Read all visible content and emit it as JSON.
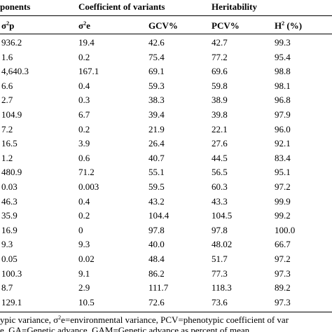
{
  "table": {
    "group_headers": [
      "ponents",
      "Coefficient of variants",
      "Heritability"
    ],
    "column_headers": [
      {
        "pre": "σ",
        "sup": "2",
        "post": "p"
      },
      {
        "pre": "σ",
        "sup": "2",
        "post": "e"
      },
      {
        "pre": "GCV%",
        "sup": "",
        "post": ""
      },
      {
        "pre": "PCV%",
        "sup": "",
        "post": ""
      },
      {
        "pre": "H",
        "sup": "2",
        "post": " (%)"
      }
    ],
    "rows": [
      [
        "936.2",
        "19.4",
        "42.6",
        "42.7",
        "99.3"
      ],
      [
        "1.6",
        "0.2",
        "75.4",
        "77.2",
        "95.4"
      ],
      [
        "4,640.3",
        "167.1",
        "69.1",
        "69.6",
        "98.8"
      ],
      [
        "6.6",
        "0.4",
        "59.3",
        "59.8",
        "98.1"
      ],
      [
        "2.7",
        "0.3",
        "38.3",
        "38.9",
        "96.8"
      ],
      [
        "104.9",
        "6.7",
        "39.4",
        "39.8",
        "97.9"
      ],
      [
        "7.2",
        "0.2",
        "21.9",
        "22.1",
        "96.0"
      ],
      [
        "16.5",
        "3.9",
        "26.4",
        "27.6",
        "92.1"
      ],
      [
        "1.2",
        "0.6",
        "40.7",
        "44.5",
        "83.4"
      ],
      [
        "480.9",
        "71.2",
        "55.1",
        "56.5",
        "95.1"
      ],
      [
        "0.03",
        "0.003",
        "59.5",
        "60.3",
        "97.2"
      ],
      [
        "46.3",
        "0.4",
        "43.2",
        "43.3",
        "99.9"
      ],
      [
        "35.9",
        "0.2",
        "104.4",
        "104.5",
        "99.2"
      ],
      [
        "16.9",
        "0",
        "97.8",
        "97.8",
        "100.0"
      ],
      [
        "9.3",
        "9.3",
        "40.0",
        "48.02",
        "66.7"
      ],
      [
        "0.05",
        "0.02",
        "48.4",
        "51.7",
        "97.2"
      ],
      [
        "100.3",
        "9.1",
        "86.2",
        "77.3",
        "97.3"
      ],
      [
        "8.7",
        "2.9",
        "111.7",
        "118.3",
        "89.2"
      ],
      [
        "129.1",
        "10.5",
        "72.6",
        "73.6",
        "97.3"
      ]
    ]
  },
  "footnote": {
    "line1": {
      "pre": "ypic variance, σ",
      "sup": "2",
      "post": "e=environmental variance, PCV=phenotypic coefficient of var"
    },
    "line2": "e. GA=Genetic advance, GAM=Genetic advance as percent of mean"
  }
}
